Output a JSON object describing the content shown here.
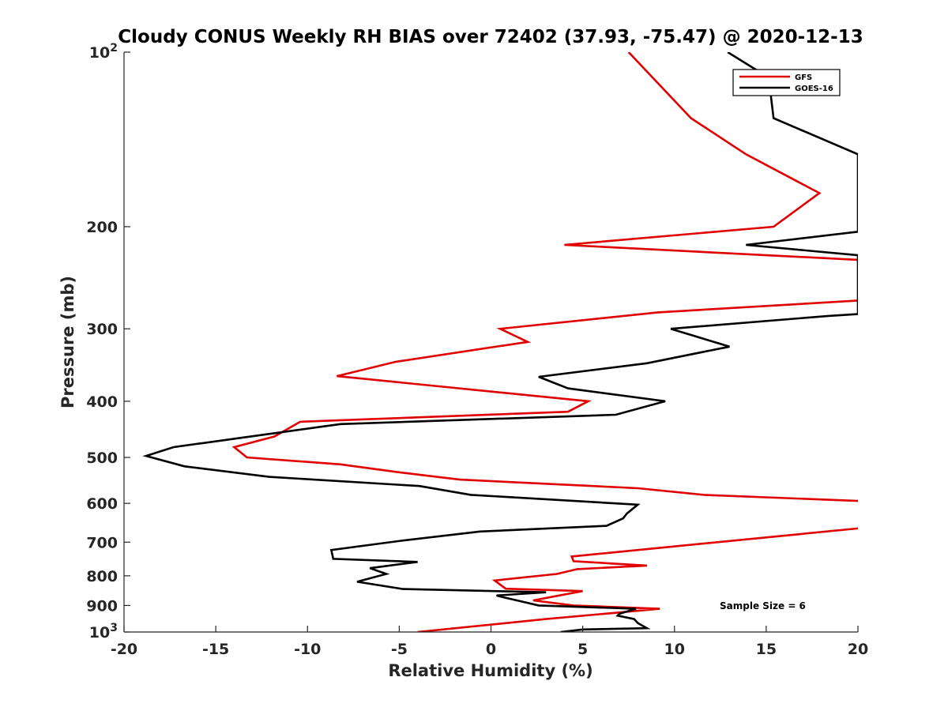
{
  "chart_data": {
    "type": "line",
    "title": "Cloudy CONUS Weekly RH BIAS over 72402 (37.93, -75.47) @ 2020-12-13",
    "xlabel": "Relative Humidity (%)",
    "ylabel": "Pressure (mb)",
    "xlim": [
      -20,
      20
    ],
    "ylim": [
      100,
      1000
    ],
    "y_scale": "log",
    "y_reversed": true,
    "grid": false,
    "legend_placement": "top-right",
    "x_ticks": [
      -20,
      -15,
      -10,
      -5,
      0,
      5,
      10,
      15,
      20
    ],
    "x_tick_labels": [
      "-20",
      "-15",
      "-10",
      "-5",
      "0",
      "5",
      "10",
      "15",
      "20"
    ],
    "y_ticks": [
      {
        "value": 100,
        "base": "10",
        "exp": "2"
      },
      {
        "value": 200,
        "label": "200"
      },
      {
        "value": 300,
        "label": "300"
      },
      {
        "value": 400,
        "label": "400"
      },
      {
        "value": 500,
        "label": "500"
      },
      {
        "value": 600,
        "label": "600"
      },
      {
        "value": 700,
        "label": "700"
      },
      {
        "value": 800,
        "label": "800"
      },
      {
        "value": 900,
        "label": "900"
      },
      {
        "value": 1000,
        "base": "10",
        "exp": "3"
      }
    ],
    "annotation": "Sample Size = 6",
    "series": [
      {
        "name": "GFS",
        "color": "#e00000",
        "points": [
          [
            7.5,
            100
          ],
          [
            10.9,
            130
          ],
          [
            13.9,
            150
          ],
          [
            17.9,
            175
          ],
          [
            15.4,
            200
          ],
          [
            4.0,
            215
          ],
          [
            21.0,
            229
          ],
          [
            21.0,
            267
          ],
          [
            9.1,
            281
          ],
          [
            0.5,
            300
          ],
          [
            2.0,
            316
          ],
          [
            -5.2,
            342
          ],
          [
            -8.4,
            362
          ],
          [
            5.3,
            400
          ],
          [
            4.2,
            417
          ],
          [
            -10.4,
            434
          ],
          [
            -11.8,
            460
          ],
          [
            -14.0,
            480
          ],
          [
            -13.3,
            500
          ],
          [
            -8.2,
            514
          ],
          [
            -5.1,
            530
          ],
          [
            -1.7,
            546
          ],
          [
            8.0,
            565
          ],
          [
            11.6,
            580
          ],
          [
            21.0,
            596
          ],
          [
            21.0,
            658
          ],
          [
            4.4,
            741
          ],
          [
            4.5,
            755
          ],
          [
            8.5,
            768
          ],
          [
            4.7,
            779
          ],
          [
            3.6,
            794
          ],
          [
            0.2,
            815
          ],
          [
            0.8,
            842
          ],
          [
            5.0,
            850
          ],
          [
            2.3,
            882
          ],
          [
            4.5,
            900
          ],
          [
            9.2,
            912
          ],
          [
            6.2,
            930
          ],
          [
            3.0,
            950
          ],
          [
            -4.0,
            1000
          ]
        ]
      },
      {
        "name": "GOES-16",
        "color": "#000000",
        "points": [
          [
            12.9,
            100
          ],
          [
            14.6,
            108
          ],
          [
            15.2,
            115
          ],
          [
            15.4,
            130
          ],
          [
            20.0,
            150
          ],
          [
            20.0,
            204
          ],
          [
            13.9,
            215
          ],
          [
            20.0,
            224
          ],
          [
            20.0,
            283
          ],
          [
            18.4,
            285
          ],
          [
            9.8,
            300
          ],
          [
            13.0,
            322
          ],
          [
            8.5,
            344
          ],
          [
            2.6,
            363
          ],
          [
            4.2,
            380
          ],
          [
            9.5,
            400
          ],
          [
            6.8,
            422
          ],
          [
            -8.2,
            438
          ],
          [
            -13.5,
            462
          ],
          [
            -17.3,
            480
          ],
          [
            -18.8,
            497
          ],
          [
            -16.7,
            518
          ],
          [
            -12.1,
            540
          ],
          [
            -3.9,
            560
          ],
          [
            -1.1,
            580
          ],
          [
            8.0,
            603
          ],
          [
            7.4,
            625
          ],
          [
            7.2,
            637
          ],
          [
            6.3,
            656
          ],
          [
            -0.6,
            671
          ],
          [
            -4.9,
            696
          ],
          [
            -8.7,
            722
          ],
          [
            -8.6,
            748
          ],
          [
            -4.0,
            757
          ],
          [
            -6.6,
            776
          ],
          [
            -5.7,
            794
          ],
          [
            -7.3,
            819
          ],
          [
            -4.8,
            843
          ],
          [
            3.0,
            854
          ],
          [
            0.3,
            865
          ],
          [
            0.6,
            870
          ],
          [
            2.6,
            900
          ],
          [
            7.9,
            912
          ],
          [
            7.0,
            930
          ],
          [
            6.9,
            937
          ],
          [
            7.8,
            950
          ],
          [
            8.0,
            965
          ],
          [
            8.5,
            985
          ],
          [
            5.0,
            990
          ],
          [
            3.8,
            1000
          ]
        ]
      }
    ]
  }
}
